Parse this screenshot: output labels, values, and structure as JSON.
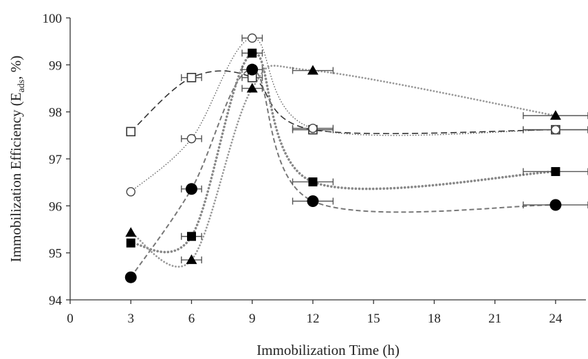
{
  "chart_data": {
    "type": "scatter",
    "title": "",
    "xlabel": "Immobilization Time (h)",
    "ylabel_main": "Immobilization Efficiency (E",
    "ylabel_sub": "ads",
    "ylabel_end": ", %)",
    "xlim": [
      0,
      25.5
    ],
    "ylim": [
      94,
      100
    ],
    "xticks": [
      0,
      3,
      6,
      9,
      12,
      15,
      18,
      21,
      24
    ],
    "yticks": [
      94,
      95,
      96,
      97,
      98,
      99,
      100
    ],
    "grid": false,
    "legend": "none",
    "x": [
      3,
      6,
      9,
      12,
      24
    ],
    "x_error": [
      0,
      0.5,
      0.5,
      1.0,
      1.6
    ],
    "series": [
      {
        "marker": "square-open",
        "line": "dash-long",
        "color": "#333333",
        "values": [
          97.58,
          98.73,
          98.73,
          97.62,
          97.62
        ]
      },
      {
        "marker": "circle-open",
        "line": "dotted-fine",
        "color": "#555555",
        "values": [
          96.3,
          97.43,
          99.57,
          97.65,
          97.62
        ]
      },
      {
        "marker": "circle-filled",
        "line": "dashed",
        "color": "#777777",
        "values": [
          94.48,
          96.36,
          98.9,
          96.1,
          96.02
        ]
      },
      {
        "marker": "square-filled",
        "line": "dotted-heavy",
        "color": "#888888",
        "values": [
          95.21,
          95.35,
          99.25,
          96.51,
          96.73
        ]
      },
      {
        "marker": "triangle-filled",
        "line": "dotted-medium",
        "color": "#999999",
        "values": [
          95.43,
          94.85,
          98.5,
          98.88,
          97.92
        ]
      }
    ]
  }
}
